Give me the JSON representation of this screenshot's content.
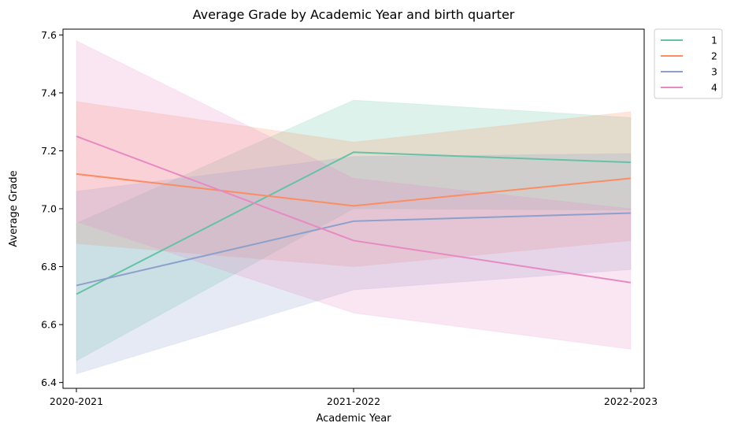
{
  "chart_data": {
    "type": "line",
    "title": "Average Grade by Academic Year and birth quarter",
    "xlabel": "Academic Year",
    "ylabel": "Average Grade",
    "categories": [
      "2020-2021",
      "2021-2022",
      "2022-2023"
    ],
    "ylim": [
      6.38,
      7.62
    ],
    "yticks": [
      6.4,
      6.6,
      6.8,
      7.0,
      7.2,
      7.4,
      7.6
    ],
    "ytick_labels": [
      "6.4",
      "6.6",
      "6.8",
      "7.0",
      "7.2",
      "7.4",
      "7.6"
    ],
    "grid": false,
    "legend": {
      "position": "outside-top-right"
    },
    "series": [
      {
        "name": "1",
        "color": "#66c2a5",
        "values": [
          6.705,
          7.195,
          7.16
        ],
        "ci_low": [
          6.475,
          7.0,
          6.995
        ],
        "ci_high": [
          6.95,
          7.375,
          7.315
        ]
      },
      {
        "name": "2",
        "color": "#fc8d62",
        "values": [
          7.12,
          7.01,
          7.105
        ],
        "ci_low": [
          6.88,
          6.8,
          6.89
        ],
        "ci_high": [
          7.37,
          7.23,
          7.335
        ]
      },
      {
        "name": "3",
        "color": "#8da0cb",
        "values": [
          6.735,
          6.957,
          6.985
        ],
        "ci_low": [
          6.43,
          6.72,
          6.79
        ],
        "ci_high": [
          7.06,
          7.18,
          7.19
        ]
      },
      {
        "name": "4",
        "color": "#e78ac3",
        "values": [
          7.25,
          6.89,
          6.745
        ],
        "ci_low": [
          6.955,
          6.64,
          6.515
        ],
        "ci_high": [
          7.58,
          7.105,
          7.0
        ]
      }
    ]
  }
}
